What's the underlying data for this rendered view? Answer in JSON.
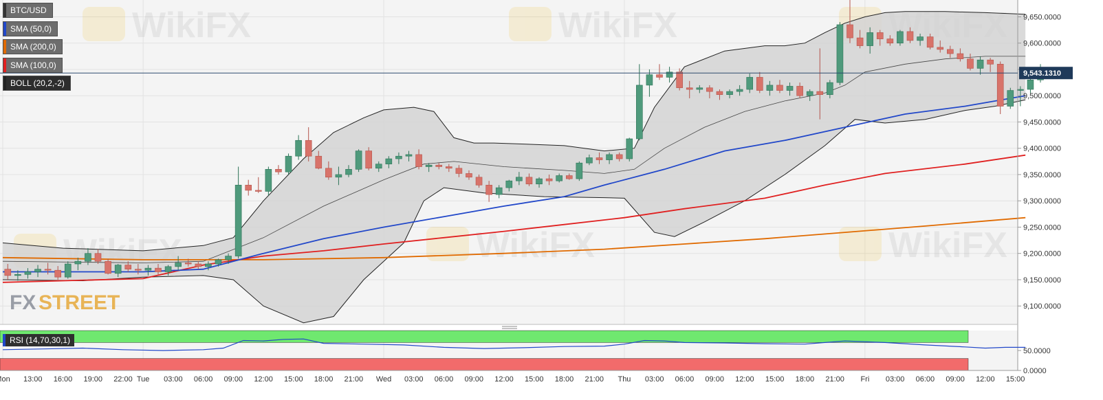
{
  "chart_data": [
    {
      "type": "candlestick",
      "symbol": "BTC/USD",
      "legend": [
        {
          "label": "BTC/USD",
          "color": "#333333"
        },
        {
          "label": "SMA (50,0)",
          "color": "#2147c9"
        },
        {
          "label": "SMA (200,0)",
          "color": "#e06a00"
        },
        {
          "label": "SMA (100,0)",
          "color": "#e02020"
        },
        {
          "label": "BOLL (20,2,-2)",
          "color": "#222222"
        }
      ],
      "current_price": "9,543.1310",
      "current_price_value": 9543.131,
      "ylim": [
        9065,
        9682
      ],
      "yticks": [
        9650,
        9600,
        9550,
        9500,
        9450,
        9400,
        9350,
        9300,
        9250,
        9200,
        9150,
        9100
      ],
      "ytick_labels": [
        "9,650.0000",
        "9,600.0000",
        "9,550.0000",
        "9,500.0000",
        "9,450.0000",
        "9,400.0000",
        "9,350.0000",
        "9,300.0000",
        "9,250.0000",
        "9,200.0000",
        "9,150.0000",
        "9,100.0000"
      ],
      "xtick_labels": [
        "Mon",
        "13:00",
        "16:00",
        "19:00",
        "22:00",
        "Tue",
        "03:00",
        "06:00",
        "09:00",
        "12:00",
        "15:00",
        "18:00",
        "21:00",
        "Wed",
        "03:00",
        "06:00",
        "09:00",
        "12:00",
        "15:00",
        "18:00",
        "21:00",
        "Thu",
        "03:00",
        "06:00",
        "09:00",
        "12:00",
        "15:00",
        "18:00",
        "21:00",
        "Fri",
        "03:00",
        "06:00",
        "09:00",
        "12:00",
        "15:00"
      ],
      "xtick_hours": [
        0,
        3,
        6,
        9,
        12,
        14,
        17,
        20,
        23,
        26,
        29,
        32,
        35,
        38,
        41,
        44,
        47,
        50,
        53,
        56,
        59,
        62,
        65,
        68,
        71,
        74,
        77,
        80,
        83,
        86,
        89,
        92,
        95,
        98,
        101
      ],
      "x_axis_start": "Mon 10:00",
      "candles_ohlc": [
        [
          9170,
          9180,
          9150,
          9158
        ],
        [
          9158,
          9168,
          9148,
          9160
        ],
        [
          9160,
          9172,
          9152,
          9165
        ],
        [
          9165,
          9178,
          9155,
          9170
        ],
        [
          9170,
          9182,
          9160,
          9168
        ],
        [
          9168,
          9176,
          9150,
          9155
        ],
        [
          9155,
          9185,
          9152,
          9180
        ],
        [
          9180,
          9192,
          9168,
          9185
        ],
        [
          9185,
          9210,
          9178,
          9200
        ],
        [
          9200,
          9208,
          9180,
          9185
        ],
        [
          9185,
          9190,
          9160,
          9162
        ],
        [
          9162,
          9180,
          9155,
          9178
        ],
        [
          9178,
          9185,
          9165,
          9170
        ],
        [
          9170,
          9180,
          9160,
          9168
        ],
        [
          9168,
          9178,
          9158,
          9172
        ],
        [
          9172,
          9180,
          9160,
          9165
        ],
        [
          9165,
          9178,
          9158,
          9175
        ],
        [
          9175,
          9195,
          9168,
          9182
        ],
        [
          9182,
          9190,
          9175,
          9180
        ],
        [
          9180,
          9185,
          9170,
          9175
        ],
        [
          9175,
          9185,
          9168,
          9180
        ],
        [
          9180,
          9190,
          9175,
          9188
        ],
        [
          9188,
          9200,
          9180,
          9195
        ],
        [
          9195,
          9365,
          9190,
          9330
        ],
        [
          9330,
          9340,
          9310,
          9320
        ],
        [
          9320,
          9345,
          9315,
          9318
        ],
        [
          9318,
          9365,
          9310,
          9360
        ],
        [
          9360,
          9368,
          9350,
          9355
        ],
        [
          9355,
          9390,
          9350,
          9385
        ],
        [
          9385,
          9425,
          9378,
          9415
        ],
        [
          9415,
          9440,
          9375,
          9385
        ],
        [
          9385,
          9395,
          9360,
          9362
        ],
        [
          9362,
          9375,
          9340,
          9345
        ],
        [
          9345,
          9365,
          9330,
          9350
        ],
        [
          9350,
          9368,
          9345,
          9360
        ],
        [
          9360,
          9398,
          9355,
          9395
        ],
        [
          9395,
          9402,
          9358,
          9362
        ],
        [
          9362,
          9375,
          9355,
          9370
        ],
        [
          9370,
          9385,
          9362,
          9380
        ],
        [
          9380,
          9392,
          9370,
          9385
        ],
        [
          9385,
          9395,
          9375,
          9388
        ],
        [
          9388,
          9398,
          9360,
          9365
        ],
        [
          9365,
          9372,
          9355,
          9368
        ],
        [
          9368,
          9372,
          9360,
          9365
        ],
        [
          9365,
          9370,
          9355,
          9362
        ],
        [
          9362,
          9368,
          9345,
          9352
        ],
        [
          9352,
          9358,
          9340,
          9345
        ],
        [
          9345,
          9350,
          9325,
          9330
        ],
        [
          9330,
          9338,
          9298,
          9312
        ],
        [
          9312,
          9330,
          9305,
          9325
        ],
        [
          9325,
          9340,
          9318,
          9338
        ],
        [
          9338,
          9355,
          9330,
          9345
        ],
        [
          9345,
          9352,
          9328,
          9332
        ],
        [
          9332,
          9345,
          9325,
          9342
        ],
        [
          9342,
          9350,
          9330,
          9338
        ],
        [
          9338,
          9352,
          9335,
          9348
        ],
        [
          9348,
          9352,
          9340,
          9342
        ],
        [
          9342,
          9375,
          9338,
          9372
        ],
        [
          9372,
          9388,
          9368,
          9382
        ],
        [
          9382,
          9392,
          9370,
          9378
        ],
        [
          9378,
          9392,
          9370,
          9388
        ],
        [
          9388,
          9392,
          9375,
          9380
        ],
        [
          9380,
          9420,
          9375,
          9418
        ],
        [
          9418,
          9560,
          9415,
          9520
        ],
        [
          9520,
          9550,
          9498,
          9540
        ],
        [
          9540,
          9560,
          9530,
          9535
        ],
        [
          9535,
          9555,
          9525,
          9545
        ],
        [
          9545,
          9552,
          9510,
          9515
        ],
        [
          9515,
          9528,
          9495,
          9512
        ],
        [
          9512,
          9520,
          9505,
          9515
        ],
        [
          9515,
          9520,
          9495,
          9508
        ],
        [
          9508,
          9512,
          9492,
          9502
        ],
        [
          9502,
          9512,
          9495,
          9508
        ],
        [
          9508,
          9520,
          9500,
          9512
        ],
        [
          9512,
          9542,
          9505,
          9535
        ],
        [
          9535,
          9545,
          9505,
          9510
        ],
        [
          9510,
          9528,
          9500,
          9520
        ],
        [
          9520,
          9530,
          9505,
          9510
        ],
        [
          9510,
          9525,
          9500,
          9518
        ],
        [
          9518,
          9525,
          9495,
          9500
        ],
        [
          9500,
          9512,
          9490,
          9508
        ],
        [
          9508,
          9590,
          9455,
          9502
        ],
        [
          9502,
          9530,
          9495,
          9525
        ],
        [
          9525,
          9640,
          9520,
          9635
        ],
        [
          9635,
          9682,
          9600,
          9610
        ],
        [
          9610,
          9625,
          9590,
          9595
        ],
        [
          9595,
          9630,
          9580,
          9620
        ],
        [
          9620,
          9625,
          9595,
          9608
        ],
        [
          9608,
          9615,
          9595,
          9600
        ],
        [
          9600,
          9625,
          9595,
          9622
        ],
        [
          9622,
          9630,
          9600,
          9605
        ],
        [
          9605,
          9618,
          9595,
          9612
        ],
        [
          9612,
          9618,
          9588,
          9592
        ],
        [
          9592,
          9605,
          9582,
          9588
        ],
        [
          9588,
          9595,
          9572,
          9580
        ],
        [
          9580,
          9590,
          9565,
          9570
        ],
        [
          9570,
          9580,
          9548,
          9552
        ],
        [
          9552,
          9575,
          9540,
          9568
        ],
        [
          9568,
          9572,
          9545,
          9560
        ],
        [
          9560,
          9565,
          9465,
          9480
        ],
        [
          9480,
          9515,
          9475,
          9510
        ],
        [
          9510,
          9518,
          9480,
          9512
        ],
        [
          9512,
          9535,
          9505,
          9530
        ],
        [
          9530,
          9560,
          9525,
          9548
        ],
        [
          9548,
          9552,
          9538,
          9543
        ]
      ],
      "sma50": [
        [
          0,
          9165
        ],
        [
          14,
          9165
        ],
        [
          20,
          9170
        ],
        [
          26,
          9200
        ],
        [
          32,
          9228
        ],
        [
          38,
          9250
        ],
        [
          44,
          9270
        ],
        [
          50,
          9290
        ],
        [
          56,
          9308
        ],
        [
          60,
          9330
        ],
        [
          66,
          9360
        ],
        [
          72,
          9395
        ],
        [
          78,
          9415
        ],
        [
          84,
          9440
        ],
        [
          90,
          9465
        ],
        [
          96,
          9480
        ],
        [
          102,
          9500
        ]
      ],
      "sma100": [
        [
          0,
          9145
        ],
        [
          14,
          9152
        ],
        [
          20,
          9178
        ],
        [
          26,
          9195
        ],
        [
          32,
          9205
        ],
        [
          38,
          9218
        ],
        [
          44,
          9230
        ],
        [
          50,
          9242
        ],
        [
          56,
          9255
        ],
        [
          62,
          9268
        ],
        [
          68,
          9285
        ],
        [
          76,
          9305
        ],
        [
          82,
          9330
        ],
        [
          88,
          9352
        ],
        [
          96,
          9370
        ],
        [
          102,
          9387
        ]
      ],
      "sma200": [
        [
          0,
          9192
        ],
        [
          14,
          9188
        ],
        [
          26,
          9188
        ],
        [
          38,
          9192
        ],
        [
          50,
          9200
        ],
        [
          60,
          9208
        ],
        [
          68,
          9218
        ],
        [
          76,
          9228
        ],
        [
          84,
          9240
        ],
        [
          92,
          9252
        ],
        [
          102,
          9268
        ]
      ],
      "boll_upper": [
        [
          0,
          9220
        ],
        [
          6,
          9210
        ],
        [
          14,
          9205
        ],
        [
          20,
          9215
        ],
        [
          23,
          9230
        ],
        [
          26,
          9300
        ],
        [
          30,
          9380
        ],
        [
          33,
          9430
        ],
        [
          36,
          9458
        ],
        [
          38,
          9473
        ],
        [
          41,
          9478
        ],
        [
          43,
          9470
        ],
        [
          45,
          9420
        ],
        [
          47,
          9410
        ],
        [
          49,
          9410
        ],
        [
          52,
          9408
        ],
        [
          56,
          9405
        ],
        [
          60,
          9395
        ],
        [
          63,
          9400
        ],
        [
          65,
          9478
        ],
        [
          68,
          9555
        ],
        [
          72,
          9585
        ],
        [
          76,
          9595
        ],
        [
          78,
          9595
        ],
        [
          80,
          9600
        ],
        [
          82,
          9620
        ],
        [
          84,
          9638
        ],
        [
          86,
          9650
        ],
        [
          88,
          9658
        ],
        [
          90,
          9660
        ],
        [
          94,
          9660
        ],
        [
          98,
          9658
        ],
        [
          102,
          9655
        ]
      ],
      "boll_mid": [
        [
          0,
          9185
        ],
        [
          14,
          9182
        ],
        [
          20,
          9185
        ],
        [
          26,
          9230
        ],
        [
          32,
          9290
        ],
        [
          38,
          9340
        ],
        [
          42,
          9370
        ],
        [
          45,
          9375
        ],
        [
          50,
          9365
        ],
        [
          56,
          9358
        ],
        [
          60,
          9352
        ],
        [
          63,
          9360
        ],
        [
          66,
          9400
        ],
        [
          70,
          9440
        ],
        [
          74,
          9470
        ],
        [
          78,
          9490
        ],
        [
          82,
          9505
        ],
        [
          84,
          9520
        ],
        [
          86,
          9545
        ],
        [
          90,
          9560
        ],
        [
          94,
          9570
        ],
        [
          98,
          9575
        ],
        [
          102,
          9575
        ]
      ],
      "boll_lower": [
        [
          0,
          9150
        ],
        [
          8,
          9148
        ],
        [
          14,
          9155
        ],
        [
          20,
          9158
        ],
        [
          23,
          9150
        ],
        [
          26,
          9100
        ],
        [
          30,
          9068
        ],
        [
          33,
          9080
        ],
        [
          36,
          9150
        ],
        [
          40,
          9220
        ],
        [
          42,
          9300
        ],
        [
          44,
          9325
        ],
        [
          48,
          9315
        ],
        [
          54,
          9308
        ],
        [
          60,
          9306
        ],
        [
          62,
          9305
        ],
        [
          65,
          9240
        ],
        [
          67,
          9232
        ],
        [
          70,
          9260
        ],
        [
          74,
          9300
        ],
        [
          78,
          9350
        ],
        [
          82,
          9405
        ],
        [
          85,
          9455
        ],
        [
          88,
          9448
        ],
        [
          92,
          9455
        ],
        [
          96,
          9472
        ],
        [
          99,
          9480
        ],
        [
          102,
          9492
        ]
      ],
      "price_line": 9543.131
    },
    {
      "type": "line",
      "name": "RSI (14,70,30,1)",
      "ylim": [
        0,
        100
      ],
      "overbought": 70,
      "oversold": 30,
      "yticks": [
        50,
        0
      ],
      "ytick_labels": [
        "50.0000",
        "0.0000"
      ],
      "rsi": [
        [
          0,
          52
        ],
        [
          4,
          54
        ],
        [
          8,
          56
        ],
        [
          12,
          52
        ],
        [
          16,
          50
        ],
        [
          20,
          52
        ],
        [
          22,
          56
        ],
        [
          24,
          75
        ],
        [
          26,
          74
        ],
        [
          28,
          78
        ],
        [
          30,
          79
        ],
        [
          32,
          68
        ],
        [
          36,
          66
        ],
        [
          40,
          64
        ],
        [
          44,
          58
        ],
        [
          48,
          55
        ],
        [
          52,
          57
        ],
        [
          56,
          60
        ],
        [
          60,
          61
        ],
        [
          62,
          66
        ],
        [
          64,
          75
        ],
        [
          66,
          74
        ],
        [
          68,
          70
        ],
        [
          72,
          69
        ],
        [
          76,
          67
        ],
        [
          80,
          66
        ],
        [
          82,
          70
        ],
        [
          84,
          74
        ],
        [
          88,
          70
        ],
        [
          92,
          64
        ],
        [
          96,
          59
        ],
        [
          98,
          56
        ],
        [
          100,
          58
        ],
        [
          102,
          58
        ]
      ]
    }
  ]
}
